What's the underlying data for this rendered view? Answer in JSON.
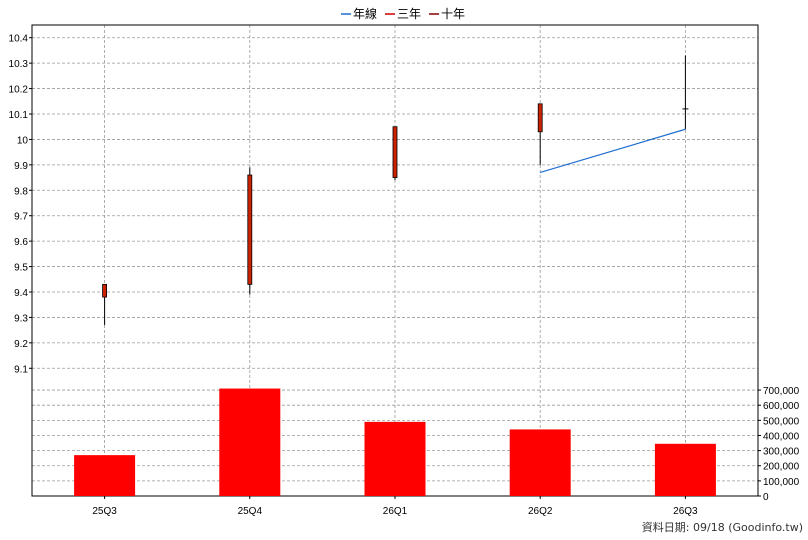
{
  "legend": {
    "annual": "年線",
    "three_year": "三年",
    "ten_year": "十年"
  },
  "footer": "資料日期: 09/18  (Goodinfo.tw)",
  "colors": {
    "annual_line": "#1f6fd0",
    "three_year_marker": "#cc0000",
    "ten_year_marker": "#880000",
    "candle_body": "#cc2200",
    "volume_bar": "#ff0000",
    "grid": "#999999"
  },
  "chart_data": [
    {
      "type": "candlestick",
      "categories": [
        "25Q3",
        "25Q4",
        "26Q1",
        "26Q2",
        "26Q3"
      ],
      "ylim": [
        9.05,
        10.45
      ],
      "yticks": [
        "9.1",
        "9.2",
        "9.3",
        "9.4",
        "9.5",
        "9.6",
        "9.7",
        "9.8",
        "9.9",
        "10",
        "10.1",
        "10.2",
        "10.3",
        "10.4"
      ],
      "ytick_values": [
        9.1,
        9.2,
        9.3,
        9.4,
        9.5,
        9.6,
        9.7,
        9.8,
        9.9,
        10.0,
        10.1,
        10.2,
        10.3,
        10.4
      ],
      "candles": [
        {
          "open": 9.43,
          "high": 9.43,
          "low": 9.27,
          "close": 9.38
        },
        {
          "open": 9.86,
          "high": 9.89,
          "low": 9.39,
          "close": 9.43
        },
        {
          "open": 10.05,
          "high": 10.05,
          "low": 9.84,
          "close": 9.85
        },
        {
          "open": 10.14,
          "high": 10.14,
          "low": 9.9,
          "close": 10.03
        },
        {
          "open": 10.12,
          "high": 10.33,
          "low": 10.04,
          "close": 10.12
        }
      ],
      "series": [
        {
          "name": "年線",
          "values": [
            null,
            null,
            null,
            9.87,
            10.04
          ]
        }
      ],
      "grid": true,
      "legend_position": "top-center"
    },
    {
      "type": "bar",
      "categories": [
        "25Q3",
        "25Q4",
        "26Q1",
        "26Q2",
        "26Q3"
      ],
      "values": [
        270000,
        710000,
        490000,
        440000,
        345000
      ],
      "ylim": [
        0,
        760000
      ],
      "yticks": [
        "0",
        "100,000",
        "200,000",
        "300,000",
        "400,000",
        "500,000",
        "600,000",
        "700,000"
      ],
      "ytick_values": [
        0,
        100000,
        200000,
        300000,
        400000,
        500000,
        600000,
        700000
      ],
      "grid": true
    }
  ]
}
